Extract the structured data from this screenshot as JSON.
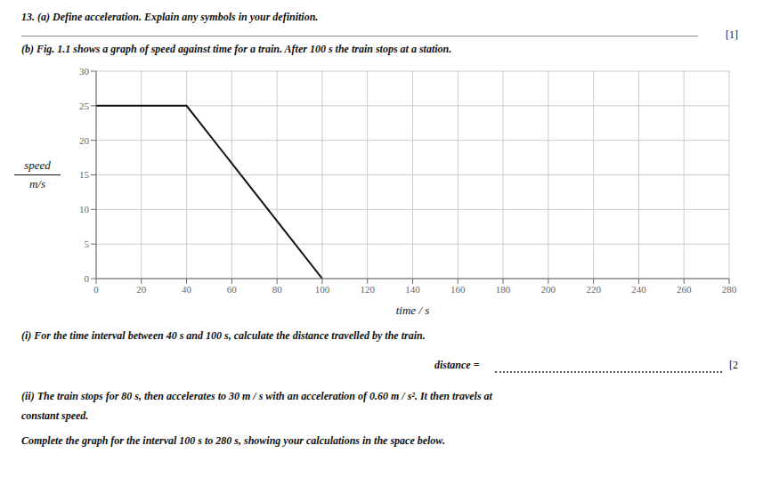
{
  "chart_data": {
    "type": "line",
    "title": "13. (a) Define acceleration. Explain any symbols in your definition.",
    "subtitle": "(b) Fig. 1.1 shows a graph of speed against time for a train. After 100 s the train stops at a station.",
    "xlabel": "time / s",
    "ylabel": [
      "speed",
      "m/s"
    ],
    "x": [
      0,
      40,
      100
    ],
    "values": [
      25,
      25,
      0
    ],
    "color": "#111111",
    "xlim": [
      0,
      280
    ],
    "ylim": [
      0,
      30
    ],
    "xticks": [
      0,
      20,
      40,
      60,
      80,
      100,
      120,
      140,
      160,
      180,
      200,
      220,
      240,
      260,
      280
    ],
    "yticks": [
      0,
      5,
      10,
      15,
      20,
      25,
      30
    ],
    "grid": true,
    "annotations": [
      "[1]",
      "(i) For the time interval between 40 s and 100 s, calculate the distance travelled by the train.",
      "distance =",
      "[2",
      "(ii) The train stops for 80 s, then accelerates to 30 m / s with an acceleration of 0.60 m / s². It then travels at",
      "constant speed.",
      "Complete the graph for the interval 100 s to 280 s, showing your calculations in the space below."
    ]
  }
}
